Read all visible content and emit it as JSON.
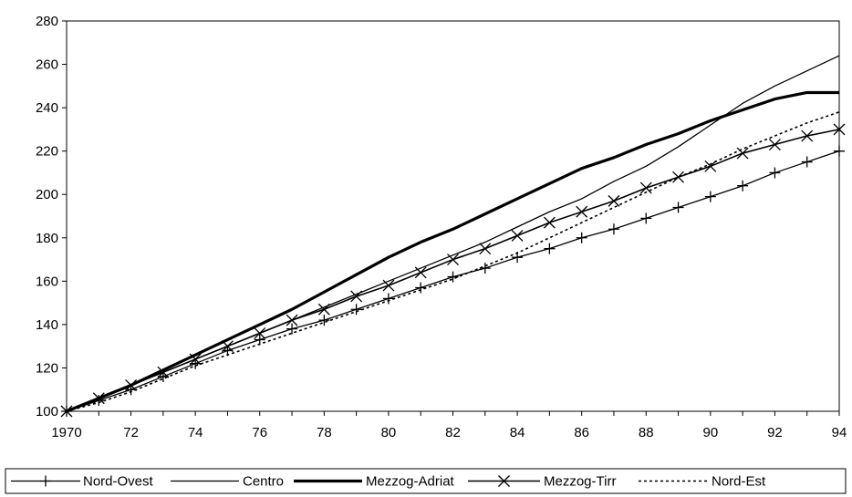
{
  "chart_data": {
    "type": "line",
    "x": [
      1970,
      1971,
      1972,
      1973,
      1974,
      1975,
      1976,
      1977,
      1978,
      1979,
      1980,
      1981,
      1982,
      1983,
      1984,
      1985,
      1986,
      1987,
      1988,
      1989,
      1990,
      1991,
      1992,
      1993,
      1994
    ],
    "x_tick_values": [
      1970,
      1972,
      1974,
      1976,
      1978,
      1980,
      1982,
      1984,
      1986,
      1988,
      1990,
      1992,
      1994
    ],
    "x_tick_labels": [
      "1970",
      "72",
      "74",
      "76",
      "78",
      "80",
      "82",
      "84",
      "86",
      "88",
      "90",
      "92",
      "94"
    ],
    "y_ticks": [
      100,
      120,
      140,
      160,
      180,
      200,
      220,
      240,
      260,
      280
    ],
    "xlim": [
      1970,
      1994
    ],
    "ylim": [
      100,
      280
    ],
    "grid": false,
    "legend_position": "bottom",
    "series": [
      {
        "name": "Nord-Ovest",
        "style": "plus-marker",
        "color": "#000000",
        "values": [
          100,
          105,
          110,
          116,
          122,
          128,
          133,
          138,
          142,
          147,
          152,
          157,
          162,
          166,
          171,
          175,
          180,
          184,
          189,
          194,
          199,
          204,
          210,
          215,
          220
        ]
      },
      {
        "name": "Centro",
        "style": "thin",
        "color": "#000000",
        "values": [
          100,
          106,
          112,
          118,
          124,
          130,
          136,
          142,
          148,
          154,
          160,
          166,
          172,
          178,
          185,
          192,
          198,
          206,
          213,
          222,
          232,
          242,
          250,
          257,
          264
        ]
      },
      {
        "name": "Mezzog-Adriat",
        "style": "thick",
        "color": "#000000",
        "values": [
          100,
          106,
          112,
          119,
          126,
          133,
          140,
          147,
          155,
          163,
          171,
          178,
          184,
          191,
          198,
          205,
          212,
          217,
          223,
          228,
          234,
          239,
          244,
          247,
          247
        ]
      },
      {
        "name": "Mezzog-Tirr",
        "style": "x-marker",
        "color": "#000000",
        "values": [
          100,
          106,
          112,
          118,
          124,
          130,
          136,
          142,
          147,
          153,
          158,
          164,
          170,
          175,
          181,
          187,
          192,
          197,
          203,
          208,
          213,
          219,
          223,
          227,
          230
        ]
      },
      {
        "name": "Nord-Est",
        "style": "dotted",
        "color": "#000000",
        "values": [
          100,
          104,
          109,
          115,
          121,
          126,
          131,
          136,
          141,
          146,
          151,
          156,
          161,
          167,
          173,
          180,
          187,
          194,
          201,
          208,
          214,
          221,
          227,
          233,
          238
        ]
      }
    ]
  }
}
